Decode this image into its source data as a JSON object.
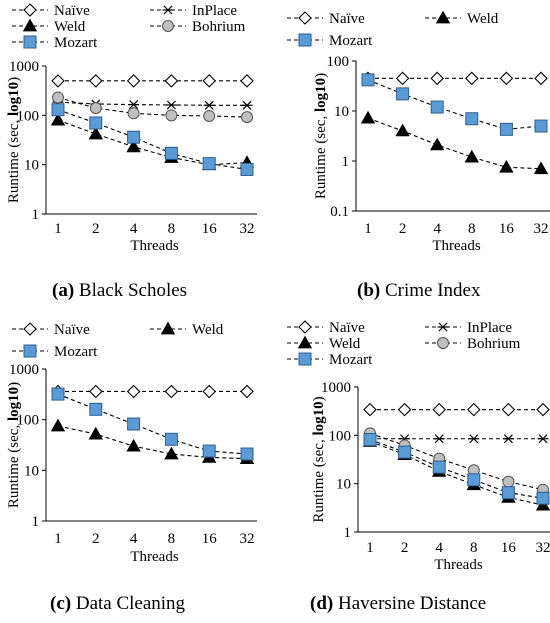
{
  "chart_data": [
    {
      "type": "line",
      "caption_letter": "(a)",
      "caption_text": "Black Scholes",
      "xlabel": "Threads",
      "ylabel_prefix": "Runtime (sec, ",
      "ylabel_bold": "log10",
      "ylabel_suffix": ")",
      "y_scale": "log",
      "ylim": [
        1,
        1000
      ],
      "yticks": [
        "1",
        "10",
        "100",
        "1000"
      ],
      "categories": [
        "1",
        "2",
        "4",
        "8",
        "16",
        "32"
      ],
      "grid": false,
      "legend_columns": 2,
      "series": [
        {
          "name": "Naïve",
          "marker": "diamond",
          "values": [
            500,
            500,
            500,
            500,
            500,
            500
          ]
        },
        {
          "name": "InPlace",
          "marker": "star",
          "values": [
            185,
            170,
            165,
            162,
            160,
            160
          ]
        },
        {
          "name": "Weld",
          "marker": "triangle",
          "values": [
            80,
            42,
            23,
            14,
            10,
            11
          ]
        },
        {
          "name": "Bohrium",
          "marker": "circle",
          "values": [
            230,
            140,
            110,
            100,
            97,
            92
          ]
        },
        {
          "name": "Mozart",
          "marker": "square",
          "values": [
            130,
            70,
            36,
            17,
            10.5,
            8
          ]
        }
      ]
    },
    {
      "type": "line",
      "caption_letter": "(b)",
      "caption_text": "Crime Index",
      "xlabel": "Threads",
      "ylabel_prefix": "Runtime (sec, ",
      "ylabel_bold": "log10",
      "ylabel_suffix": ")",
      "y_scale": "log",
      "ylim": [
        0.1,
        100
      ],
      "yticks": [
        "0.1",
        "1",
        "10",
        "100"
      ],
      "categories": [
        "1",
        "2",
        "4",
        "8",
        "16",
        "32"
      ],
      "grid": false,
      "legend_columns": 2,
      "series": [
        {
          "name": "Naïve",
          "marker": "diamond",
          "values": [
            45,
            45,
            45,
            45,
            45,
            45
          ]
        },
        {
          "name": "Weld",
          "marker": "triangle",
          "values": [
            7.2,
            4.0,
            2.1,
            1.2,
            0.75,
            0.7
          ]
        },
        {
          "name": "Mozart",
          "marker": "square",
          "values": [
            42,
            22,
            12,
            7,
            4.3,
            5
          ]
        }
      ]
    },
    {
      "type": "line",
      "caption_letter": "(c)",
      "caption_text": "Data Cleaning",
      "xlabel": "Threads",
      "ylabel_prefix": "Runtime (sec, ",
      "ylabel_bold": "log10",
      "ylabel_suffix": ")",
      "y_scale": "log",
      "ylim": [
        1,
        1000
      ],
      "yticks": [
        "1",
        "10",
        "100",
        "1000"
      ],
      "categories": [
        "1",
        "2",
        "4",
        "8",
        "16",
        "32"
      ],
      "grid": false,
      "legend_columns": 2,
      "series": [
        {
          "name": "Naïve",
          "marker": "diamond",
          "values": [
            360,
            360,
            360,
            360,
            360,
            360
          ]
        },
        {
          "name": "Weld",
          "marker": "triangle",
          "values": [
            75,
            52,
            30,
            21,
            18,
            17
          ]
        },
        {
          "name": "Mozart",
          "marker": "square",
          "values": [
            320,
            160,
            82,
            41,
            24,
            21
          ]
        }
      ]
    },
    {
      "type": "line",
      "caption_letter": "(d)",
      "caption_text": "Haversine Distance",
      "xlabel": "Threads",
      "ylabel_prefix": "Runtime (sec, ",
      "ylabel_bold": "log10",
      "ylabel_suffix": ")",
      "y_scale": "log",
      "ylim": [
        1,
        1000
      ],
      "yticks": [
        "1",
        "10",
        "100",
        "1000"
      ],
      "categories": [
        "1",
        "2",
        "4",
        "8",
        "16",
        "32"
      ],
      "grid": false,
      "legend_columns": 2,
      "series": [
        {
          "name": "Naïve",
          "marker": "diamond",
          "values": [
            340,
            340,
            340,
            340,
            340,
            340
          ]
        },
        {
          "name": "InPlace",
          "marker": "star",
          "values": [
            85,
            85,
            85,
            85,
            85,
            85
          ]
        },
        {
          "name": "Weld",
          "marker": "triangle",
          "values": [
            75,
            40,
            18,
            9.5,
            5.2,
            3.6
          ]
        },
        {
          "name": "Bohrium",
          "marker": "circle",
          "values": [
            110,
            62,
            33,
            19,
            11,
            7.5
          ]
        },
        {
          "name": "Mozart",
          "marker": "square",
          "values": [
            82,
            45,
            22,
            12,
            6.5,
            5
          ]
        }
      ]
    }
  ],
  "colors": {
    "mozart_fill": "#5b9bd5",
    "mozart_stroke": "#2e5f8f",
    "bohrium_fill": "#bfbfbf",
    "line": "#000000"
  }
}
